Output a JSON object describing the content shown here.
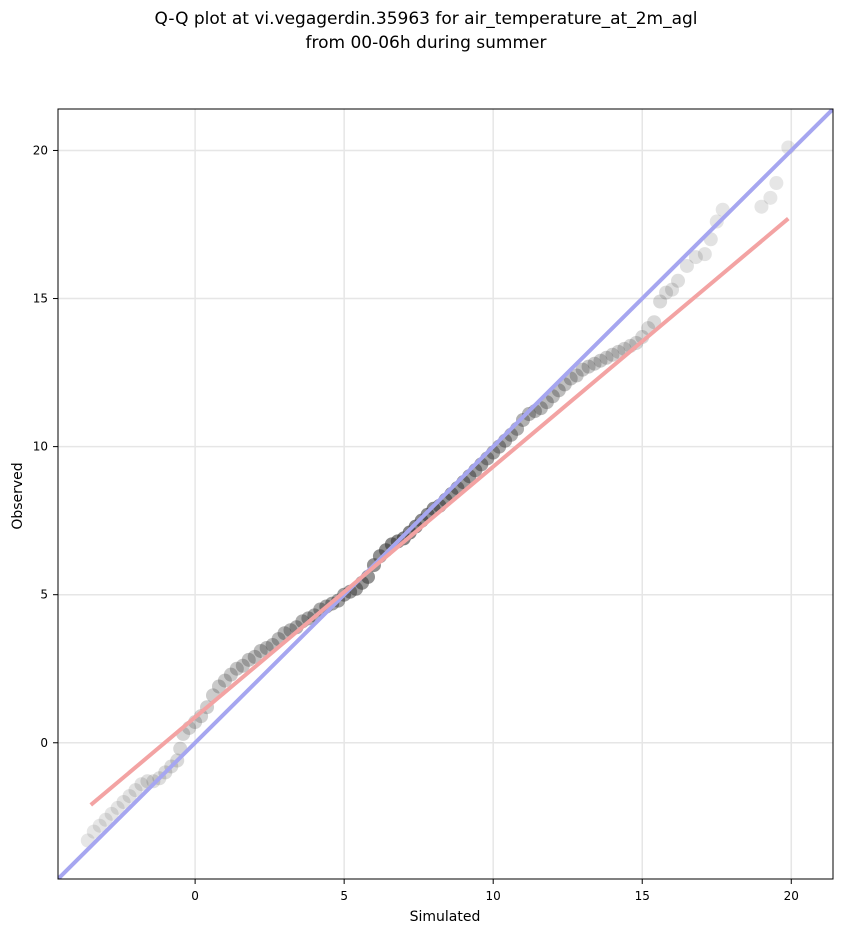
{
  "chart_data": {
    "type": "scatter",
    "title_line1": "Q-Q plot at vi.vegagerdin.35963 for air_temperature_at_2m_agl",
    "title_line2": "from 00-06h during summer",
    "xlabel": "Simulated",
    "ylabel": "Observed",
    "xlim": [
      -4.6,
      21.4
    ],
    "ylim": [
      -4.6,
      21.4
    ],
    "xticks": [
      0,
      5,
      10,
      15,
      20
    ],
    "yticks": [
      0,
      5,
      10,
      15,
      20
    ],
    "grid": true,
    "colors": {
      "points": "#333333",
      "identity_line": "#a6a6f0",
      "fit_line": "#f3a3a3"
    },
    "identity_line": {
      "x": [
        -4.6,
        21.4
      ],
      "y": [
        -4.6,
        21.4
      ]
    },
    "fit_line": {
      "x": [
        -3.5,
        19.9
      ],
      "y": [
        -2.1,
        17.7
      ]
    },
    "quantiles": {
      "simulated": [
        -3.6,
        -3.4,
        -3.2,
        -3.0,
        -2.8,
        -2.6,
        -2.4,
        -2.2,
        -2.0,
        -1.8,
        -1.6,
        -1.4,
        -1.2,
        -1.0,
        -0.8,
        -0.6,
        -0.5,
        -0.4,
        -0.2,
        0.0,
        0.2,
        0.4,
        0.6,
        0.8,
        1.0,
        1.2,
        1.4,
        1.6,
        1.8,
        2.0,
        2.2,
        2.4,
        2.6,
        2.8,
        3.0,
        3.2,
        3.4,
        3.6,
        3.8,
        4.0,
        4.2,
        4.4,
        4.6,
        4.8,
        5.0,
        5.2,
        5.4,
        5.6,
        5.8,
        6.0,
        6.2,
        6.4,
        6.6,
        6.8,
        7.0,
        7.2,
        7.4,
        7.6,
        7.8,
        8.0,
        8.2,
        8.4,
        8.6,
        8.8,
        9.0,
        9.2,
        9.4,
        9.6,
        9.8,
        10.0,
        10.2,
        10.4,
        10.6,
        10.8,
        11.0,
        11.2,
        11.4,
        11.6,
        11.8,
        12.0,
        12.2,
        12.4,
        12.6,
        12.8,
        13.0,
        13.2,
        13.4,
        13.6,
        13.8,
        14.0,
        14.2,
        14.4,
        14.6,
        14.8,
        15.0,
        15.2,
        15.4,
        15.6,
        15.8,
        16.0,
        16.2,
        16.5,
        16.8,
        17.1,
        17.3,
        17.5,
        17.7,
        19.0,
        19.3,
        19.5,
        19.9
      ],
      "observed": [
        -3.3,
        -3.0,
        -2.8,
        -2.6,
        -2.4,
        -2.2,
        -2.0,
        -1.8,
        -1.6,
        -1.4,
        -1.3,
        -1.3,
        -1.2,
        -1.0,
        -0.8,
        -0.6,
        -0.2,
        0.3,
        0.5,
        0.7,
        0.9,
        1.2,
        1.6,
        1.9,
        2.1,
        2.3,
        2.5,
        2.6,
        2.8,
        2.9,
        3.1,
        3.2,
        3.3,
        3.5,
        3.7,
        3.8,
        3.9,
        4.1,
        4.2,
        4.3,
        4.5,
        4.6,
        4.7,
        4.8,
        5.0,
        5.1,
        5.2,
        5.4,
        5.6,
        6.0,
        6.3,
        6.5,
        6.7,
        6.8,
        6.9,
        7.1,
        7.3,
        7.5,
        7.7,
        7.9,
        8.0,
        8.2,
        8.4,
        8.6,
        8.8,
        9.0,
        9.2,
        9.4,
        9.6,
        9.8,
        10.0,
        10.2,
        10.4,
        10.6,
        10.9,
        11.1,
        11.2,
        11.3,
        11.5,
        11.7,
        11.9,
        12.1,
        12.3,
        12.4,
        12.6,
        12.7,
        12.8,
        12.9,
        13.0,
        13.1,
        13.2,
        13.3,
        13.4,
        13.5,
        13.7,
        14.0,
        14.2,
        14.9,
        15.2,
        15.3,
        15.6,
        16.1,
        16.4,
        16.5,
        17.0,
        17.6,
        18.0,
        18.1,
        18.4,
        18.9,
        20.1
      ]
    }
  }
}
